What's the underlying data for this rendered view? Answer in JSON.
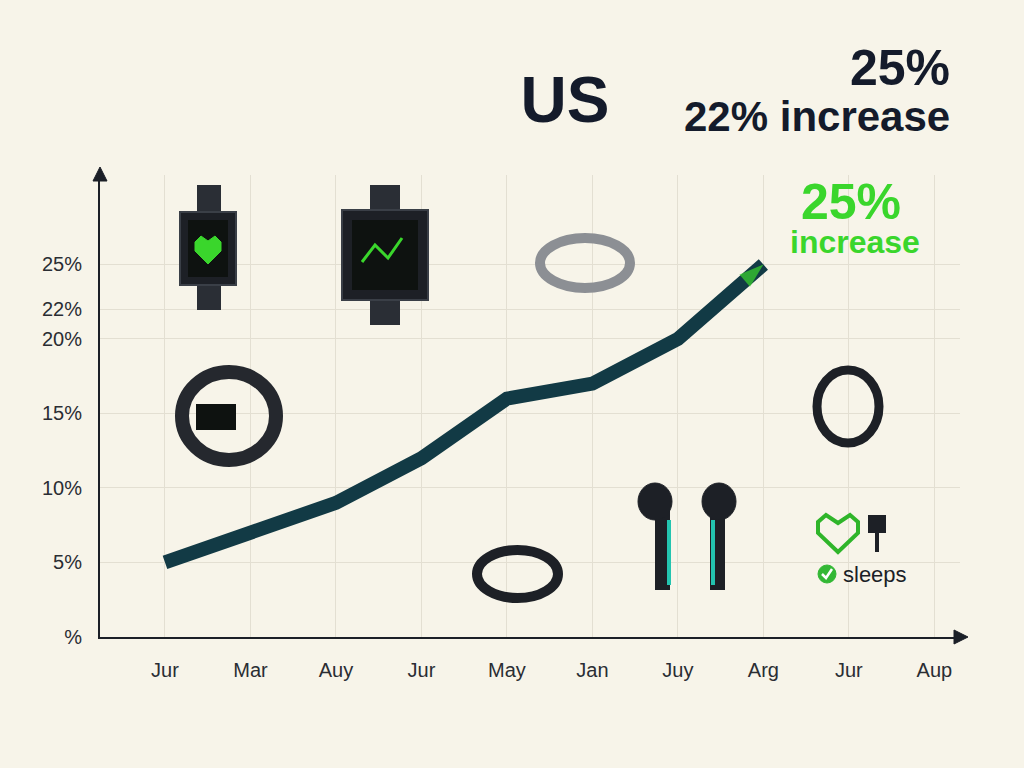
{
  "chart_data": {
    "type": "line",
    "title": "US",
    "subtitle": [
      "25%",
      "22% increase"
    ],
    "categories": [
      "Jur",
      "Mar",
      "Auy",
      "Jur",
      "May",
      "Jan",
      "Juy",
      "Arg",
      "Jur",
      "Aup"
    ],
    "values": [
      5,
      7,
      9,
      12,
      16,
      17,
      20,
      25,
      null,
      null
    ],
    "color": "#123a45",
    "marker": "arrow",
    "ylim": [
      0,
      31
    ],
    "yticks": [
      {
        "value": 0,
        "label": "%"
      },
      {
        "value": 5,
        "label": "5%"
      },
      {
        "value": 10,
        "label": "10%"
      },
      {
        "value": 15,
        "label": "15%"
      },
      {
        "value": 20,
        "label": "20%"
      },
      {
        "value": 22,
        "label": "22%"
      },
      {
        "value": 25,
        "label": "25%"
      }
    ],
    "grid": true,
    "annotations": [
      "25% increase",
      "sleeps"
    ]
  }
}
